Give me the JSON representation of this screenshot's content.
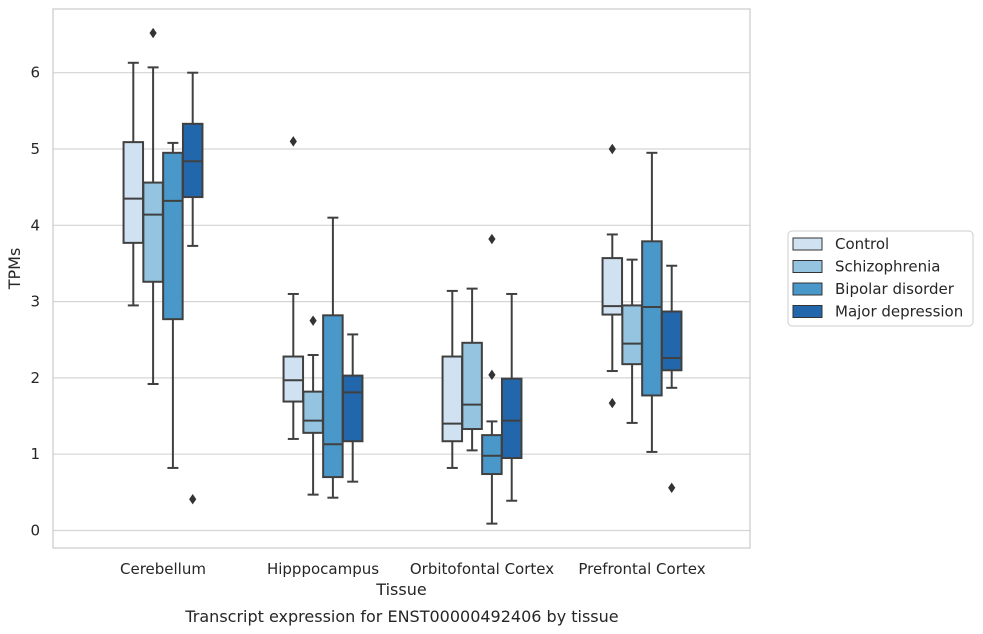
{
  "chart_data": {
    "type": "box",
    "xlabel": "Tissue",
    "ylabel": "TPMs",
    "caption": "Transcript expression for ENST00000492406 by tissue",
    "ylim": [
      -0.22,
      6.85
    ],
    "y_ticks": [
      0,
      1,
      2,
      3,
      4,
      5,
      6
    ],
    "grid": "horizontal",
    "legend_position": "right",
    "categories": [
      "Cerebellum",
      "Hipppocampus",
      "Orbitofontal Cortex",
      "Prefrontal Cortex"
    ],
    "series": [
      {
        "name": "Control",
        "color": "#d0e1f2",
        "boxes": [
          {
            "whisker_low": 2.95,
            "q1": 3.77,
            "median": 4.35,
            "q3": 5.09,
            "whisker_high": 6.13,
            "outliers": []
          },
          {
            "whisker_low": 1.2,
            "q1": 1.69,
            "median": 1.97,
            "q3": 2.28,
            "whisker_high": 3.1,
            "outliers": [
              5.1
            ]
          },
          {
            "whisker_low": 0.82,
            "q1": 1.17,
            "median": 1.4,
            "q3": 2.28,
            "whisker_high": 3.14,
            "outliers": []
          },
          {
            "whisker_low": 2.09,
            "q1": 2.83,
            "median": 2.94,
            "q3": 3.57,
            "whisker_high": 3.88,
            "outliers": [
              1.67,
              5.0
            ]
          }
        ]
      },
      {
        "name": "Schizophrenia",
        "color": "#94c4df",
        "boxes": [
          {
            "whisker_low": 1.92,
            "q1": 3.26,
            "median": 4.14,
            "q3": 4.56,
            "whisker_high": 6.07,
            "outliers": [
              6.52
            ]
          },
          {
            "whisker_low": 0.47,
            "q1": 1.28,
            "median": 1.44,
            "q3": 1.82,
            "whisker_high": 2.3,
            "outliers": [
              2.75
            ]
          },
          {
            "whisker_low": 1.05,
            "q1": 1.33,
            "median": 1.65,
            "q3": 2.46,
            "whisker_high": 3.17,
            "outliers": []
          },
          {
            "whisker_low": 1.41,
            "q1": 2.18,
            "median": 2.45,
            "q3": 2.95,
            "whisker_high": 3.55,
            "outliers": []
          }
        ]
      },
      {
        "name": "Bipolar disorder",
        "color": "#4a98c9",
        "boxes": [
          {
            "whisker_low": 0.82,
            "q1": 2.77,
            "median": 4.32,
            "q3": 4.95,
            "whisker_high": 5.08,
            "outliers": []
          },
          {
            "whisker_low": 0.43,
            "q1": 0.7,
            "median": 1.13,
            "q3": 2.82,
            "whisker_high": 4.1,
            "outliers": []
          },
          {
            "whisker_low": 0.09,
            "q1": 0.74,
            "median": 0.98,
            "q3": 1.25,
            "whisker_high": 1.43,
            "outliers": [
              2.04,
              3.82
            ]
          },
          {
            "whisker_low": 1.03,
            "q1": 1.77,
            "median": 2.93,
            "q3": 3.79,
            "whisker_high": 4.95,
            "outliers": []
          }
        ]
      },
      {
        "name": "Major depression",
        "color": "#2266ac",
        "boxes": [
          {
            "whisker_low": 3.73,
            "q1": 4.37,
            "median": 4.84,
            "q3": 5.33,
            "whisker_high": 6.0,
            "outliers": [
              0.41
            ]
          },
          {
            "whisker_low": 0.64,
            "q1": 1.17,
            "median": 1.81,
            "q3": 2.03,
            "whisker_high": 2.57,
            "outliers": []
          },
          {
            "whisker_low": 0.39,
            "q1": 0.95,
            "median": 1.44,
            "q3": 1.99,
            "whisker_high": 3.1,
            "outliers": []
          },
          {
            "whisker_low": 1.87,
            "q1": 2.1,
            "median": 2.26,
            "q3": 2.87,
            "whisker_high": 3.47,
            "outliers": [
              0.56
            ]
          }
        ]
      }
    ]
  }
}
